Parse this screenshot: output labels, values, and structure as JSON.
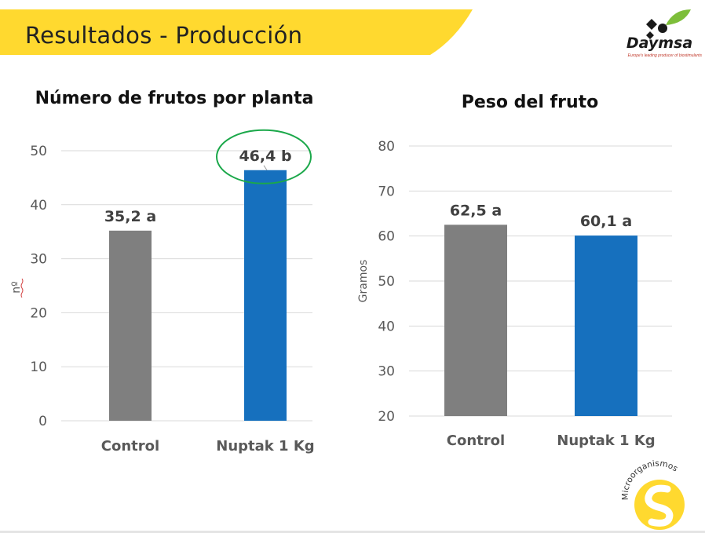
{
  "slide": {
    "title": "Resultados - Producción"
  },
  "logo": {
    "text": "Daymsa",
    "tagline": "Europe's leading producer of biostimulants"
  },
  "badge": {
    "text": "Microorganismos"
  },
  "colors": {
    "banner": "#FFD92F",
    "control": "#7F7F7F",
    "treatment": "#1670BE",
    "highlight": "#1BA84A",
    "logo_leaf": "#7DBE3A"
  },
  "chart_data": [
    {
      "type": "bar",
      "title": "Número de frutos por planta",
      "ylabel": "nº",
      "xlabel": "",
      "categories": [
        "Control",
        "Nuptak 1 Kg"
      ],
      "values": [
        35.2,
        46.4
      ],
      "data_labels": [
        "35,2 a",
        "46,4 b"
      ],
      "highlighted_label_index": 1,
      "ylim": [
        0,
        50
      ],
      "yticks": [
        0,
        10,
        20,
        30,
        40,
        50
      ],
      "grid": true
    },
    {
      "type": "bar",
      "title": "Peso del fruto",
      "ylabel": "Gramos",
      "xlabel": "",
      "categories": [
        "Control",
        "Nuptak 1 Kg"
      ],
      "values": [
        62.5,
        60.1
      ],
      "data_labels": [
        "62,5 a",
        "60,1 a"
      ],
      "ylim": [
        20,
        80
      ],
      "yticks": [
        20,
        30,
        40,
        50,
        60,
        70,
        80
      ],
      "grid": true
    }
  ]
}
